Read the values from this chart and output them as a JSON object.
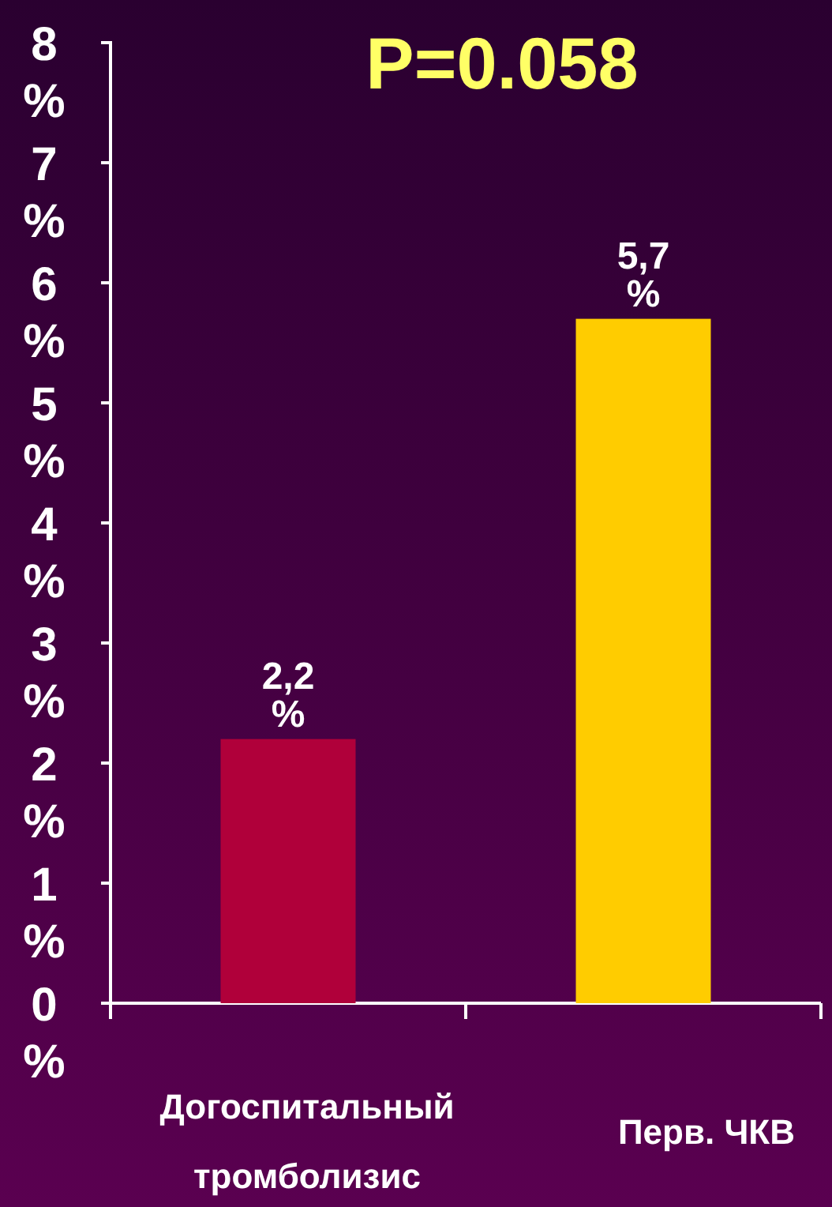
{
  "chart_data": {
    "type": "bar",
    "title": "P=0.058",
    "categories": [
      "Догоспитальный тромболизис",
      "Перв. ЧКВ"
    ],
    "values": [
      2.2,
      5.7
    ],
    "colors": [
      "#b0003a",
      "#ffcc00"
    ],
    "value_labels": [
      "2,2 %",
      "5,7 %"
    ],
    "ylim": [
      0,
      8
    ],
    "yticks": [
      {
        "value": 0,
        "label": "0 %"
      },
      {
        "value": 1,
        "label": "1 %"
      },
      {
        "value": 2,
        "label": "2 %"
      },
      {
        "value": 3,
        "label": "3 %"
      },
      {
        "value": 4,
        "label": "4 %"
      },
      {
        "value": 5,
        "label": "5 %"
      },
      {
        "value": 6,
        "label": "6 %"
      },
      {
        "value": 7,
        "label": "7 %"
      },
      {
        "value": 8,
        "label": "8 %"
      }
    ],
    "grid": false
  }
}
